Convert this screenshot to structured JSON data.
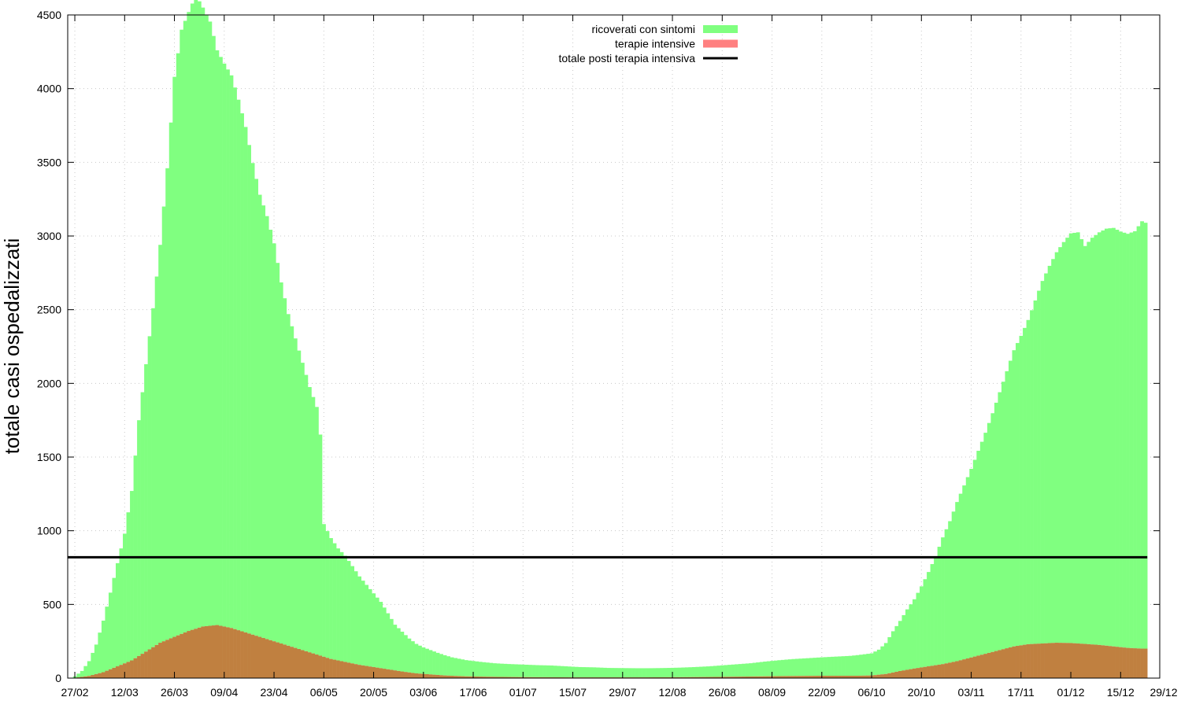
{
  "chart_data": {
    "type": "bar",
    "ylabel": "totale casi ospedalizzati",
    "ylim": [
      0,
      4500
    ],
    "yticks": [
      0,
      500,
      1000,
      1500,
      2000,
      2500,
      3000,
      3500,
      4000,
      4500
    ],
    "xlim": [
      -2,
      305
    ],
    "xticks": [
      {
        "day": 0,
        "label": "27/02"
      },
      {
        "day": 14,
        "label": "12/03"
      },
      {
        "day": 28,
        "label": "26/03"
      },
      {
        "day": 42,
        "label": "09/04"
      },
      {
        "day": 56,
        "label": "23/04"
      },
      {
        "day": 70,
        "label": "06/05"
      },
      {
        "day": 84,
        "label": "20/05"
      },
      {
        "day": 98,
        "label": "03/06"
      },
      {
        "day": 112,
        "label": "17/06"
      },
      {
        "day": 126,
        "label": "01/07"
      },
      {
        "day": 140,
        "label": "15/07"
      },
      {
        "day": 154,
        "label": "29/07"
      },
      {
        "day": 168,
        "label": "12/08"
      },
      {
        "day": 182,
        "label": "26/08"
      },
      {
        "day": 196,
        "label": "08/09"
      },
      {
        "day": 210,
        "label": "22/09"
      },
      {
        "day": 224,
        "label": "06/10"
      },
      {
        "day": 238,
        "label": "20/10"
      },
      {
        "day": 252,
        "label": "03/11"
      },
      {
        "day": 266,
        "label": "17/11"
      },
      {
        "day": 280,
        "label": "01/12"
      },
      {
        "day": 294,
        "label": "15/12"
      },
      {
        "day": 308,
        "label": "29/12"
      }
    ],
    "grid": true,
    "legend_position": "top-center",
    "series": [
      {
        "name": "ricoverati con sintomi",
        "color": "#80ff80",
        "keypoints": [
          [
            0,
            10
          ],
          [
            2,
            40
          ],
          [
            4,
            100
          ],
          [
            6,
            200
          ],
          [
            8,
            350
          ],
          [
            10,
            520
          ],
          [
            12,
            700
          ],
          [
            14,
            880
          ],
          [
            16,
            1150
          ],
          [
            18,
            1600
          ],
          [
            20,
            1950
          ],
          [
            22,
            2300
          ],
          [
            24,
            2700
          ],
          [
            26,
            3200
          ],
          [
            28,
            3800
          ],
          [
            30,
            4100
          ],
          [
            32,
            4200
          ],
          [
            34,
            4300
          ],
          [
            36,
            4200
          ],
          [
            38,
            4100
          ],
          [
            40,
            3900
          ],
          [
            42,
            3820
          ],
          [
            44,
            3750
          ],
          [
            46,
            3600
          ],
          [
            48,
            3430
          ],
          [
            50,
            3200
          ],
          [
            52,
            3000
          ],
          [
            54,
            2870
          ],
          [
            56,
            2700
          ],
          [
            58,
            2450
          ],
          [
            60,
            2250
          ],
          [
            62,
            2100
          ],
          [
            64,
            1950
          ],
          [
            66,
            1800
          ],
          [
            68,
            1680
          ],
          [
            69,
            1500
          ],
          [
            70,
            900
          ],
          [
            72,
            820
          ],
          [
            74,
            760
          ],
          [
            76,
            720
          ],
          [
            78,
            660
          ],
          [
            80,
            600
          ],
          [
            82,
            550
          ],
          [
            84,
            500
          ],
          [
            86,
            450
          ],
          [
            88,
            380
          ],
          [
            90,
            310
          ],
          [
            92,
            270
          ],
          [
            94,
            230
          ],
          [
            96,
            200
          ],
          [
            98,
            180
          ],
          [
            100,
            165
          ],
          [
            102,
            150
          ],
          [
            106,
            125
          ],
          [
            110,
            110
          ],
          [
            114,
            100
          ],
          [
            118,
            92
          ],
          [
            122,
            88
          ],
          [
            126,
            85
          ],
          [
            130,
            82
          ],
          [
            134,
            80
          ],
          [
            138,
            75
          ],
          [
            142,
            70
          ],
          [
            146,
            68
          ],
          [
            150,
            64
          ],
          [
            154,
            63
          ],
          [
            158,
            62
          ],
          [
            162,
            62
          ],
          [
            166,
            63
          ],
          [
            170,
            65
          ],
          [
            174,
            68
          ],
          [
            178,
            72
          ],
          [
            182,
            78
          ],
          [
            186,
            84
          ],
          [
            190,
            90
          ],
          [
            194,
            100
          ],
          [
            198,
            108
          ],
          [
            202,
            115
          ],
          [
            206,
            120
          ],
          [
            210,
            125
          ],
          [
            214,
            130
          ],
          [
            218,
            135
          ],
          [
            222,
            145
          ],
          [
            224,
            150
          ],
          [
            226,
            170
          ],
          [
            228,
            210
          ],
          [
            230,
            280
          ],
          [
            232,
            340
          ],
          [
            234,
            410
          ],
          [
            236,
            470
          ],
          [
            238,
            550
          ],
          [
            240,
            640
          ],
          [
            242,
            740
          ],
          [
            244,
            860
          ],
          [
            246,
            960
          ],
          [
            248,
            1080
          ],
          [
            250,
            1180
          ],
          [
            252,
            1280
          ],
          [
            254,
            1390
          ],
          [
            256,
            1500
          ],
          [
            258,
            1620
          ],
          [
            260,
            1750
          ],
          [
            262,
            1880
          ],
          [
            264,
            2010
          ],
          [
            266,
            2100
          ],
          [
            268,
            2200
          ],
          [
            270,
            2330
          ],
          [
            272,
            2460
          ],
          [
            274,
            2560
          ],
          [
            276,
            2650
          ],
          [
            278,
            2720
          ],
          [
            280,
            2780
          ],
          [
            282,
            2790
          ],
          [
            284,
            2700
          ],
          [
            286,
            2760
          ],
          [
            288,
            2800
          ],
          [
            290,
            2830
          ],
          [
            292,
            2840
          ],
          [
            294,
            2820
          ],
          [
            296,
            2810
          ],
          [
            298,
            2830
          ],
          [
            300,
            2900
          ],
          [
            301,
            2890
          ]
        ],
        "note_values": "stacked on top of terapie intensive"
      },
      {
        "name": "terapie intensive",
        "color": "#e08040",
        "keypoints": [
          [
            0,
            2
          ],
          [
            4,
            15
          ],
          [
            8,
            40
          ],
          [
            12,
            80
          ],
          [
            16,
            120
          ],
          [
            20,
            180
          ],
          [
            24,
            240
          ],
          [
            28,
            280
          ],
          [
            32,
            320
          ],
          [
            36,
            350
          ],
          [
            40,
            360
          ],
          [
            44,
            340
          ],
          [
            48,
            310
          ],
          [
            52,
            280
          ],
          [
            56,
            250
          ],
          [
            60,
            220
          ],
          [
            64,
            190
          ],
          [
            68,
            160
          ],
          [
            72,
            130
          ],
          [
            76,
            110
          ],
          [
            80,
            90
          ],
          [
            84,
            75
          ],
          [
            88,
            60
          ],
          [
            92,
            45
          ],
          [
            96,
            32
          ],
          [
            100,
            25
          ],
          [
            104,
            18
          ],
          [
            110,
            12
          ],
          [
            120,
            8
          ],
          [
            130,
            6
          ],
          [
            140,
            5
          ],
          [
            150,
            5
          ],
          [
            160,
            5
          ],
          [
            170,
            6
          ],
          [
            180,
            8
          ],
          [
            190,
            11
          ],
          [
            200,
            14
          ],
          [
            210,
            16
          ],
          [
            220,
            16
          ],
          [
            224,
            18
          ],
          [
            228,
            28
          ],
          [
            232,
            48
          ],
          [
            236,
            65
          ],
          [
            240,
            80
          ],
          [
            244,
            95
          ],
          [
            248,
            115
          ],
          [
            252,
            140
          ],
          [
            256,
            165
          ],
          [
            260,
            190
          ],
          [
            264,
            215
          ],
          [
            268,
            230
          ],
          [
            272,
            235
          ],
          [
            276,
            240
          ],
          [
            280,
            238
          ],
          [
            284,
            232
          ],
          [
            288,
            225
          ],
          [
            292,
            215
          ],
          [
            296,
            205
          ],
          [
            300,
            200
          ],
          [
            301,
            200
          ]
        ]
      },
      {
        "name": "totale posti terapia intensiva",
        "color": "#000000",
        "type": "hline",
        "value": 820
      }
    ]
  }
}
